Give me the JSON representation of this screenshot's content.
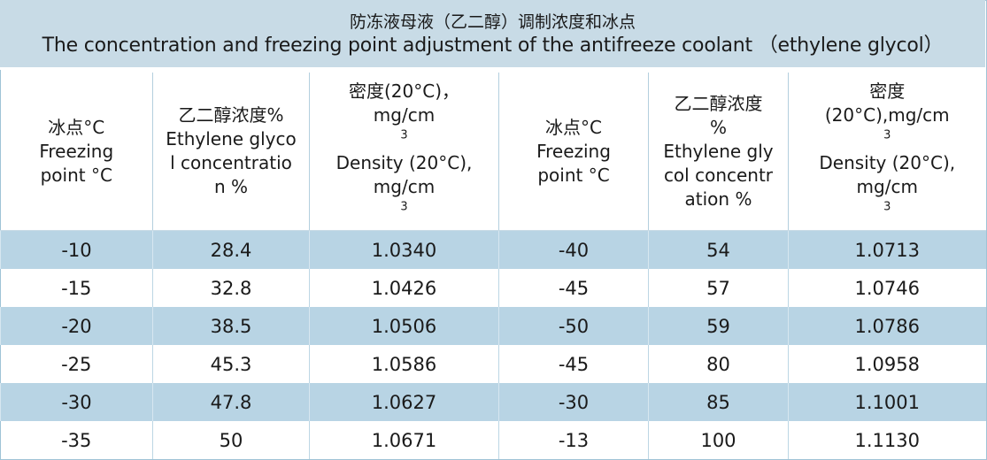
{
  "title": {
    "zh": "防冻液母液（乙二醇）调制浓度和冰点",
    "en": "The concentration and freezing point adjustment of the antifreeze coolant （ethylene glycol）"
  },
  "headers": {
    "freezing_zh": "冰点°C",
    "freezing_en": "Freezing point °C",
    "conc_zh": "乙二醇浓度%",
    "conc_zh_right_a": "乙二醇浓度",
    "conc_zh_right_b": "%",
    "conc_en": "Ethylene glycol concentration %",
    "density_zh_left": "密度(20°C)，",
    "density_unit_left": "mg/cm",
    "density_zh_right_a": "密度",
    "density_zh_right_b": "(20°C),mg/cm",
    "density_en": "Density (20°C),",
    "density_en_unit": "mg/cm",
    "sup3": "3"
  },
  "chart_data": {
    "type": "table",
    "title": "防冻液母液（乙二醇）调制浓度和冰点 The concentration and freezing point adjustment of the antifreeze coolant （ethylene glycol）",
    "columns": [
      "冰点°C Freezing point °C",
      "乙二醇浓度% Ethylene glycol concentration %",
      "密度(20°C)，mg/cm3 Density (20°C), mg/cm3",
      "冰点°C Freezing point °C",
      "乙二醇浓度% Ethylene glycol concentration %",
      "密度(20°C),mg/cm3 Density (20°C), mg/cm3"
    ],
    "rows": [
      [
        "-10",
        "28.4",
        "1.0340",
        "-40",
        "54",
        "1.0713"
      ],
      [
        "-15",
        "32.8",
        "1.0426",
        "-45",
        "57",
        "1.0746"
      ],
      [
        "-20",
        "38.5",
        "1.0506",
        "-50",
        "59",
        "1.0786"
      ],
      [
        "-25",
        "45.3",
        "1.0586",
        "-45",
        "80",
        "1.0958"
      ],
      [
        "-30",
        "47.8",
        "1.0627",
        "-30",
        "85",
        "1.1001"
      ],
      [
        "-35",
        "50",
        "1.0671",
        "-13",
        "100",
        "1.1130"
      ]
    ]
  },
  "colors": {
    "title_bg": "#c8dbe6",
    "row_shade": "#b8d4e4",
    "row_plain": "#ffffff"
  }
}
